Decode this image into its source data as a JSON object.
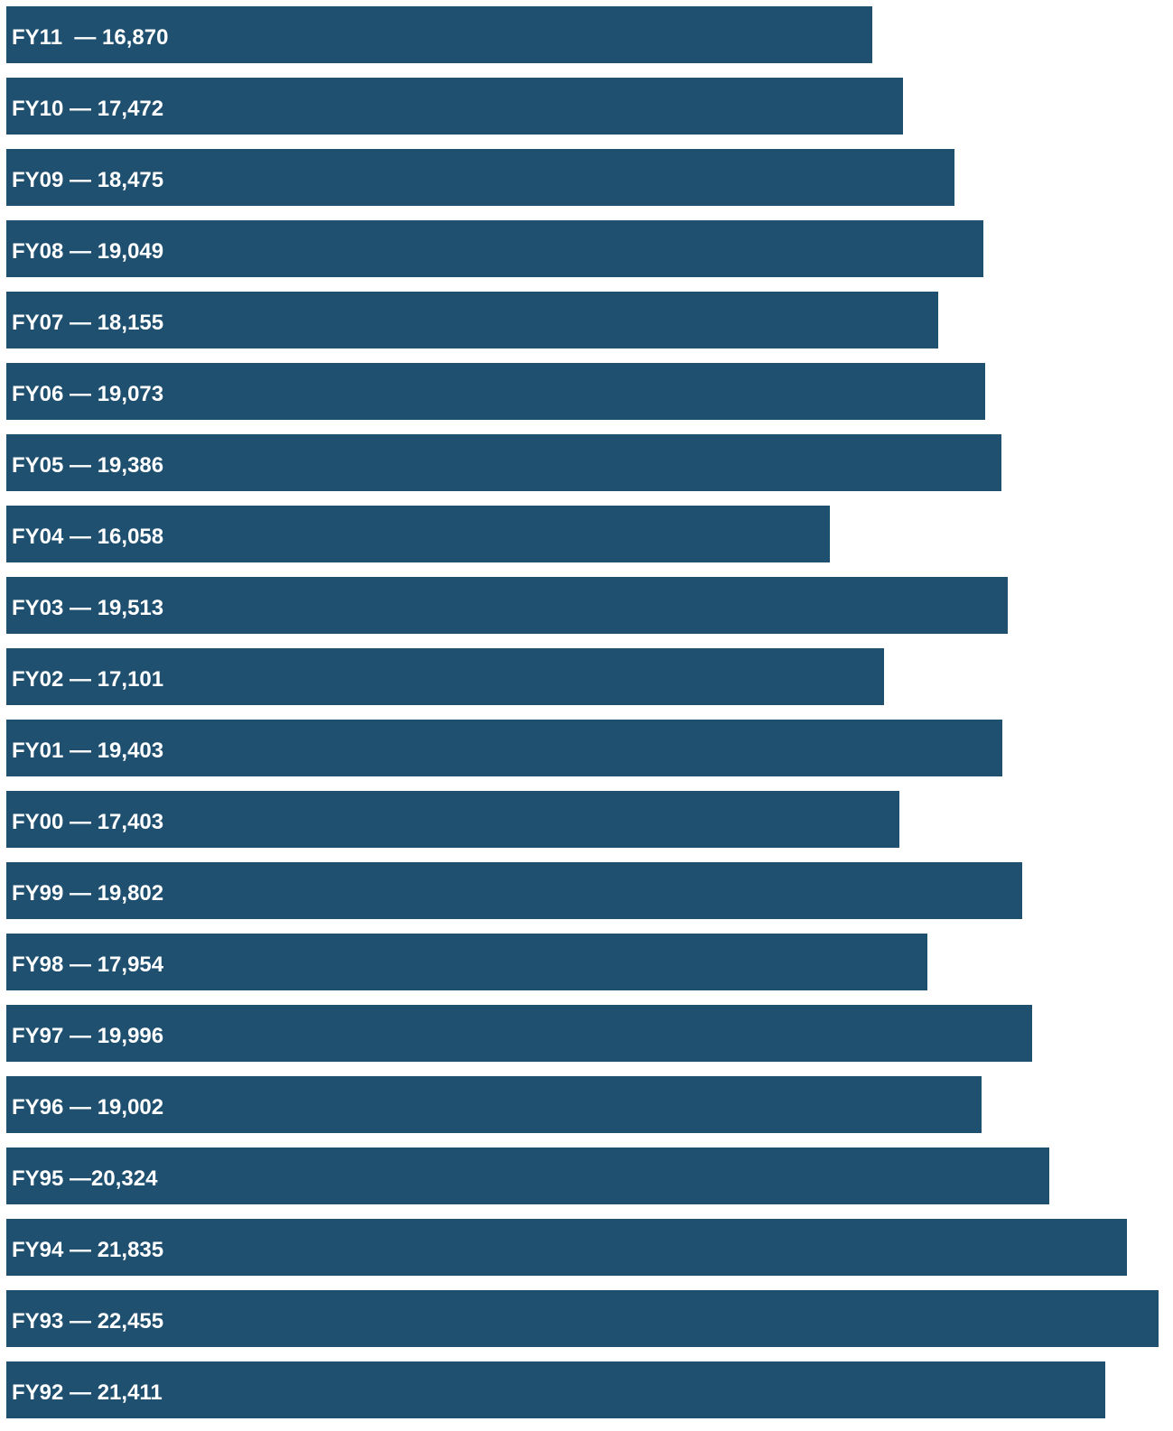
{
  "chart_data": {
    "type": "bar",
    "orientation": "horizontal",
    "bar_color": "#1f5070",
    "label_color": "#ffffff",
    "background": "#ffffff",
    "xlim": [
      0,
      22455
    ],
    "categories": [
      "FY11",
      "FY10",
      "FY09",
      "FY08",
      "FY07",
      "FY06",
      "FY05",
      "FY04",
      "FY03",
      "FY02",
      "FY01",
      "FY00",
      "FY99",
      "FY98",
      "FY97",
      "FY96",
      "FY95",
      "FY94",
      "FY93",
      "FY92"
    ],
    "values": [
      16870,
      17472,
      18475,
      19049,
      18155,
      19073,
      19386,
      16058,
      19513,
      17101,
      19403,
      17403,
      19802,
      17954,
      19996,
      19002,
      20324,
      21835,
      22455,
      21411
    ],
    "labels": [
      "FY11  — 16,870",
      "FY10 — 17,472",
      "FY09 — 18,475",
      "FY08 — 19,049",
      "FY07 — 18,155",
      "FY06 — 19,073",
      "FY05 — 19,386",
      "FY04 — 16,058",
      "FY03 — 19,513",
      "FY02 — 17,101",
      "FY01 — 19,403",
      "FY00 — 17,403",
      "FY99 — 19,802",
      "FY98 — 17,954",
      "FY97 — 19,996",
      "FY96 — 19,002",
      "FY95 —20,324",
      "FY94 — 21,835",
      "FY93 — 22,455",
      "FY92 — 21,411"
    ],
    "title": "",
    "xlabel": "",
    "ylabel": "",
    "grid": false,
    "legend": "none"
  }
}
